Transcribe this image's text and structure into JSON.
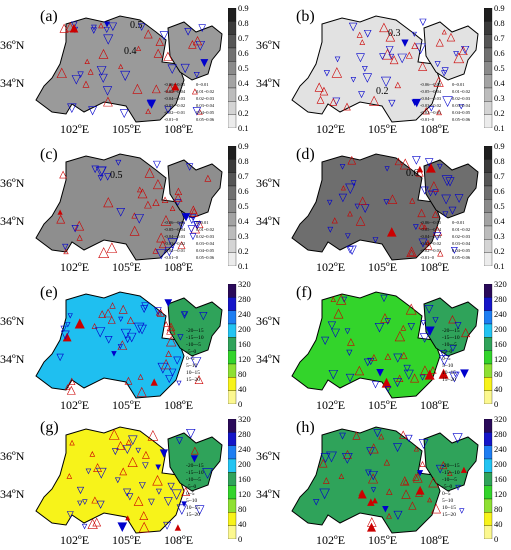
{
  "lat_labels": [
    "36ºN",
    "34ºN"
  ],
  "lon_labels": [
    "102ºE",
    "105ºE",
    "108ºE"
  ],
  "gray_ticks": [
    "0.9",
    "0.8",
    "0.7",
    "0.6",
    "0.5",
    "0.4",
    "0.3",
    "0.2",
    "0.1"
  ],
  "color_ticks": [
    "320",
    "280",
    "240",
    "200",
    "160",
    "120",
    "80",
    "40",
    "0"
  ],
  "trend_legend": {
    "left": [
      "-0.06~-0.05",
      "-0.05~-0.04",
      "-0.04~-0.03",
      "-0.03~-0.02",
      "-0.02~-0.01",
      "-0.01~0"
    ],
    "right": [
      "0~0.01",
      "0.01~0.02",
      "0.02~0.03",
      "0.03~0.04",
      "0.04~0.05",
      "0.05~0.06"
    ]
  },
  "change_legend": [
    "-20~-15",
    "-15~-10",
    "-10~-5",
    "-5~0",
    "0~5",
    "5~10",
    "10~15",
    "15~20"
  ],
  "panels": [
    {
      "label": "(a)",
      "type": "gray",
      "contours": [
        "0.5",
        "0.4"
      ]
    },
    {
      "label": "(b)",
      "type": "gray",
      "contours": [
        "0.3",
        "0.2"
      ]
    },
    {
      "label": "(c)",
      "type": "gray",
      "contours": [
        "0.5"
      ]
    },
    {
      "label": "(d)",
      "type": "gray",
      "contours": [
        "0.6"
      ]
    },
    {
      "label": "(e)",
      "type": "color",
      "contours": []
    },
    {
      "label": "(f)",
      "type": "color",
      "contours": []
    },
    {
      "label": "(g)",
      "type": "color",
      "contours": []
    },
    {
      "label": "(h)",
      "type": "color",
      "contours": []
    }
  ],
  "colors": {
    "gray_scale": [
      "#1e1e1e",
      "#3a3a3a",
      "#555555",
      "#707070",
      "#8a8a8a",
      "#a3a3a3",
      "#bcbcbc",
      "#d4d4d4",
      "#ececec"
    ],
    "color_scale": [
      "#2a0a5a",
      "#1515c8",
      "#1e7ef2",
      "#23c4f2",
      "#2fa35a",
      "#33d42b",
      "#8ee033",
      "#f7f31a",
      "#fcf890"
    ],
    "panel_fills": {
      "a": "#9a9a9a",
      "b": "#e2e2e2",
      "c": "#8e8e8e",
      "d": "#6e6e6e",
      "e": "#1fbff0",
      "f": "#33d42b",
      "g": "#f7f31a",
      "h": "#2fa35a"
    },
    "east_fill_colored": "#2fa35a",
    "decrease_marker": "#0000cc",
    "increase_marker": "#cc0000"
  }
}
